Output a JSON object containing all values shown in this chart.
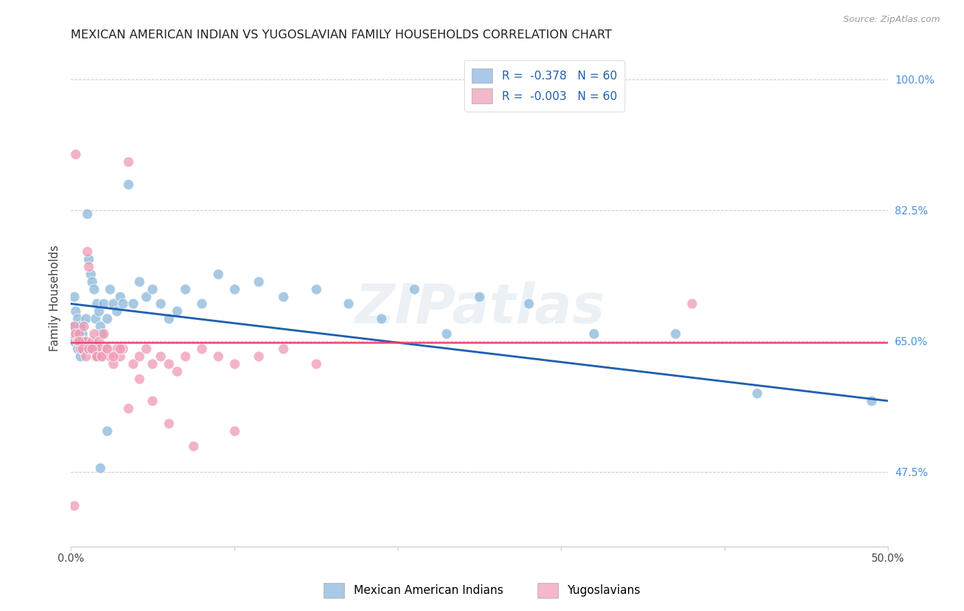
{
  "title": "MEXICAN AMERICAN INDIAN VS YUGOSLAVIAN FAMILY HOUSEHOLDS CORRELATION CHART",
  "source": "Source: ZipAtlas.com",
  "ylabel": "Family Households",
  "right_yticks": [
    "47.5%",
    "65.0%",
    "82.5%",
    "100.0%"
  ],
  "right_ytick_vals": [
    0.475,
    0.65,
    0.825,
    1.0
  ],
  "xmin": 0.0,
  "xmax": 0.5,
  "ymin": 0.375,
  "ymax": 1.04,
  "legend_r1": "R =  -0.378   N = 60",
  "legend_r2": "R =  -0.003   N = 60",
  "legend_color1": "#aac8e8",
  "legend_color2": "#f4b8ca",
  "scatter_color_blue": "#8ab8dc",
  "scatter_color_pink": "#f09ab5",
  "line_color_blue": "#2060b0",
  "line_color_pink": "#e84070",
  "grid_color": "#cccccc",
  "watermark": "ZIPatlas",
  "blue_points_x": [
    0.001,
    0.002,
    0.003,
    0.004,
    0.005,
    0.006,
    0.007,
    0.008,
    0.009,
    0.01,
    0.011,
    0.012,
    0.013,
    0.014,
    0.015,
    0.016,
    0.017,
    0.018,
    0.019,
    0.02,
    0.022,
    0.024,
    0.026,
    0.028,
    0.03,
    0.032,
    0.035,
    0.038,
    0.042,
    0.046,
    0.05,
    0.055,
    0.06,
    0.065,
    0.07,
    0.08,
    0.09,
    0.1,
    0.115,
    0.13,
    0.15,
    0.17,
    0.19,
    0.21,
    0.23,
    0.25,
    0.28,
    0.32,
    0.37,
    0.42,
    0.002,
    0.004,
    0.006,
    0.008,
    0.01,
    0.012,
    0.015,
    0.018,
    0.022,
    0.49
  ],
  "blue_points_y": [
    0.67,
    0.71,
    0.69,
    0.68,
    0.66,
    0.67,
    0.66,
    0.65,
    0.68,
    0.82,
    0.76,
    0.74,
    0.73,
    0.72,
    0.68,
    0.7,
    0.69,
    0.67,
    0.66,
    0.7,
    0.68,
    0.72,
    0.7,
    0.69,
    0.71,
    0.7,
    0.86,
    0.7,
    0.73,
    0.71,
    0.72,
    0.7,
    0.68,
    0.69,
    0.72,
    0.7,
    0.74,
    0.72,
    0.73,
    0.71,
    0.72,
    0.7,
    0.68,
    0.72,
    0.66,
    0.71,
    0.7,
    0.66,
    0.66,
    0.58,
    0.65,
    0.64,
    0.63,
    0.65,
    0.64,
    0.64,
    0.63,
    0.48,
    0.53,
    0.57
  ],
  "pink_points_x": [
    0.001,
    0.002,
    0.003,
    0.004,
    0.005,
    0.006,
    0.007,
    0.008,
    0.009,
    0.01,
    0.011,
    0.012,
    0.013,
    0.014,
    0.015,
    0.016,
    0.017,
    0.018,
    0.019,
    0.02,
    0.022,
    0.024,
    0.026,
    0.028,
    0.03,
    0.032,
    0.035,
    0.038,
    0.042,
    0.046,
    0.05,
    0.055,
    0.06,
    0.065,
    0.07,
    0.08,
    0.09,
    0.1,
    0.115,
    0.13,
    0.15,
    0.003,
    0.005,
    0.007,
    0.009,
    0.011,
    0.013,
    0.016,
    0.019,
    0.022,
    0.026,
    0.03,
    0.035,
    0.042,
    0.05,
    0.06,
    0.075,
    0.1,
    0.38,
    0.002
  ],
  "pink_points_y": [
    0.66,
    0.67,
    0.66,
    0.65,
    0.66,
    0.64,
    0.65,
    0.67,
    0.65,
    0.77,
    0.75,
    0.64,
    0.65,
    0.66,
    0.64,
    0.63,
    0.65,
    0.64,
    0.63,
    0.66,
    0.64,
    0.63,
    0.62,
    0.64,
    0.63,
    0.64,
    0.89,
    0.62,
    0.63,
    0.64,
    0.62,
    0.63,
    0.62,
    0.61,
    0.63,
    0.64,
    0.63,
    0.62,
    0.63,
    0.64,
    0.62,
    0.9,
    0.65,
    0.64,
    0.63,
    0.64,
    0.64,
    0.63,
    0.63,
    0.64,
    0.63,
    0.64,
    0.56,
    0.6,
    0.57,
    0.54,
    0.51,
    0.53,
    0.7,
    0.43
  ],
  "blue_line_x": [
    0.0,
    0.5
  ],
  "blue_line_y": [
    0.7,
    0.57
  ],
  "pink_line_x": [
    0.0,
    0.5
  ],
  "pink_line_y": [
    0.648,
    0.648
  ]
}
